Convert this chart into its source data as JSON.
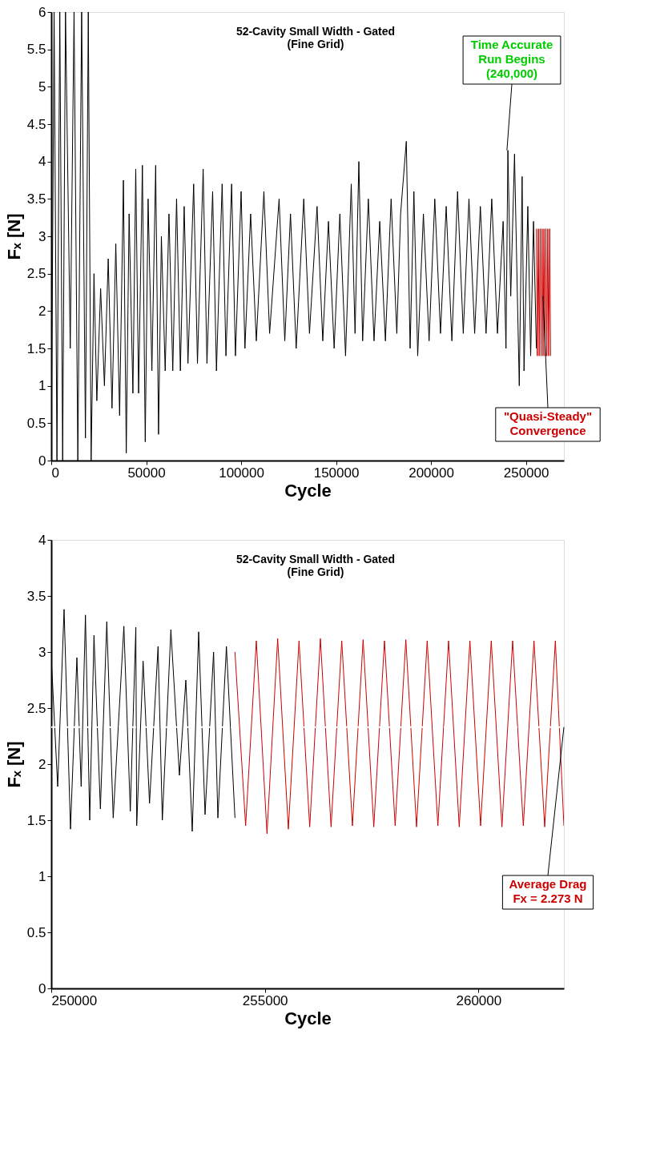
{
  "chart_data": [
    {
      "type": "line",
      "title": "52-Cavity Small Width - Gated",
      "subtitle": "(Fine Grid)",
      "xlabel": "Cycle",
      "ylabel": "Fₓ [N]",
      "xlim": [
        0,
        270000
      ],
      "xticks": [
        0,
        50000,
        100000,
        150000,
        200000,
        250000
      ],
      "ylim": [
        0,
        6
      ],
      "yticks": [
        0,
        0.5,
        1,
        1.5,
        2,
        2.5,
        3,
        3.5,
        4,
        4.5,
        5,
        5.5,
        6
      ],
      "grid": false,
      "line_style": "solid",
      "series": [
        {
          "color": "#000000",
          "x": [
            0,
            1500,
            3000,
            4500,
            6000,
            7500,
            10000,
            12000,
            14000,
            16000,
            18000,
            19500,
            21000,
            22500,
            24000,
            26000,
            28000,
            30000,
            32000,
            34000,
            36000,
            38000,
            39500,
            41000,
            43000,
            44500,
            46000,
            48000,
            49500,
            51000,
            53000,
            55000,
            56500,
            58000,
            60000,
            62000,
            64000,
            66000,
            68000,
            70000,
            72000,
            75000,
            77000,
            80000,
            82000,
            85000,
            87000,
            90000,
            92000,
            95000,
            97000,
            100000,
            102000,
            105000,
            108000,
            112000,
            115000,
            120000,
            123000,
            126000,
            129000,
            133000,
            136000,
            140000,
            143000,
            146000,
            149000,
            152000,
            155000,
            158000,
            160000,
            162000,
            164000,
            167000,
            170000,
            173000,
            176000,
            179000,
            182000,
            184000,
            187000,
            189000,
            191000,
            193000,
            196000,
            199000,
            202000,
            205000,
            208000,
            211000,
            214000,
            217000,
            220000,
            223000,
            226000,
            229000,
            232000,
            235000,
            238000,
            239500,
            240500,
            242000,
            244000,
            245500,
            246500,
            248000,
            249000,
            251000,
            252500,
            254000,
            255500
          ],
          "values": [
            0,
            6,
            0,
            6,
            0,
            6,
            1.5,
            6,
            0,
            6,
            0.3,
            6,
            0,
            2.5,
            0.8,
            2.3,
            1.0,
            2.7,
            0.7,
            2.9,
            0.6,
            3.75,
            0.1,
            3.3,
            0.9,
            3.9,
            0.9,
            3.95,
            0.25,
            3.5,
            1.2,
            3.95,
            0.35,
            3.0,
            1.2,
            3.3,
            1.2,
            3.5,
            1.2,
            3.4,
            1.3,
            3.7,
            1.3,
            3.9,
            1.3,
            3.6,
            1.2,
            3.7,
            1.4,
            3.7,
            1.4,
            3.6,
            1.5,
            3.3,
            1.6,
            3.6,
            1.7,
            3.5,
            1.6,
            3.3,
            1.5,
            3.5,
            1.7,
            3.4,
            1.6,
            3.2,
            1.5,
            3.3,
            1.4,
            3.7,
            1.7,
            4.0,
            1.6,
            3.5,
            1.6,
            3.2,
            1.6,
            3.5,
            1.7,
            3.3,
            4.27,
            1.5,
            3.6,
            1.4,
            3.3,
            1.6,
            3.5,
            1.7,
            3.4,
            1.6,
            3.6,
            1.7,
            3.5,
            1.7,
            3.4,
            1.7,
            3.5,
            1.7,
            3.2,
            1.5,
            4.15,
            2.2,
            4.1,
            2.2,
            1.0,
            3.8,
            1.2,
            3.4,
            1.4,
            3.2,
            1.5
          ]
        },
        {
          "color": "#cc0000",
          "x": [
            255500,
            256000,
            256500,
            257000,
            257500,
            258000,
            258500,
            259000,
            259500,
            260000,
            260500,
            261000,
            261500,
            262000,
            262500,
            263000
          ],
          "values": [
            3.1,
            1.4,
            3.1,
            1.4,
            3.1,
            1.4,
            3.1,
            1.4,
            3.1,
            1.4,
            3.1,
            1.4,
            3.1,
            1.4,
            3.1,
            1.4
          ]
        }
      ],
      "annotations": [
        {
          "text": "Time Accurate\nRun Begins\n(240,000)",
          "x": 240000,
          "y": 4.15
        },
        {
          "text": "\"Quasi-Steady\"\nConvergence",
          "x": 259000,
          "y": 2.2
        }
      ]
    },
    {
      "type": "line",
      "title": "52-Cavity Small Width - Gated",
      "subtitle": "(Fine Grid)",
      "xlabel": "Cycle",
      "ylabel": "Fₓ [N]",
      "xlim": [
        250000,
        262000
      ],
      "xticks": [
        250000,
        255000,
        260000
      ],
      "ylim": [
        0,
        4
      ],
      "yticks": [
        0,
        0.5,
        1,
        1.5,
        2,
        2.5,
        3,
        3.5,
        4
      ],
      "grid": false,
      "line_style": "solid",
      "series": [
        {
          "color": "#000000",
          "x": [
            250000,
            250150,
            250300,
            250450,
            250600,
            250700,
            250800,
            250900,
            251000,
            251150,
            251300,
            251450,
            251700,
            251850,
            251980,
            252000,
            252150,
            252300,
            252500,
            252600,
            252800,
            253000,
            253150,
            253300,
            253450,
            253600,
            253800,
            253900,
            254100,
            254300
          ],
          "values": [
            2.95,
            1.8,
            3.38,
            1.42,
            2.95,
            1.8,
            3.33,
            1.5,
            3.15,
            1.6,
            3.27,
            1.52,
            3.23,
            1.58,
            3.22,
            1.45,
            2.92,
            1.65,
            3.05,
            1.5,
            3.2,
            1.9,
            2.75,
            1.4,
            3.18,
            1.55,
            3.0,
            1.52,
            3.05,
            1.52
          ]
        },
        {
          "color": "#cc0000",
          "x": [
            254300,
            254550,
            254800,
            255050,
            255300,
            255550,
            255800,
            256050,
            256300,
            256550,
            256800,
            257050,
            257300,
            257550,
            257800,
            258050,
            258300,
            258550,
            258800,
            259050,
            259300,
            259550,
            259800,
            260050,
            260300,
            260550,
            260800,
            261050,
            261300,
            261550,
            261800,
            262000
          ],
          "values": [
            3.0,
            1.45,
            3.1,
            1.38,
            3.12,
            1.42,
            3.1,
            1.44,
            3.12,
            1.44,
            3.1,
            1.45,
            3.11,
            1.44,
            3.1,
            1.45,
            3.11,
            1.44,
            3.1,
            1.45,
            3.1,
            1.44,
            3.1,
            1.45,
            3.1,
            1.44,
            3.1,
            1.45,
            3.1,
            1.44,
            3.1,
            1.45
          ]
        }
      ],
      "ref_lines": [
        {
          "axis": "y",
          "value": 2.33,
          "color": "#ffffff",
          "line_style": "dashed"
        }
      ],
      "annotations": [
        {
          "text": "Average Drag\nFx = 2.273 N",
          "x": 262000,
          "y": 2.33
        }
      ]
    }
  ]
}
